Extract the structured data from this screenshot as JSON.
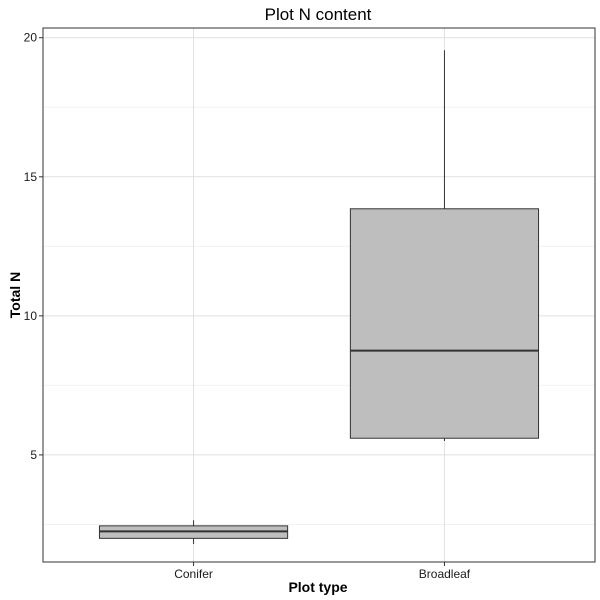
{
  "chart_data": {
    "type": "boxplot",
    "title": "Plot N content",
    "xlabel": "Plot type",
    "ylabel": "Total N",
    "categories": [
      "Conifer",
      "Broadleaf"
    ],
    "boxes": [
      {
        "category": "Conifer",
        "min": 1.8,
        "q1": 2.0,
        "median": 2.25,
        "q3": 2.45,
        "max": 2.65
      },
      {
        "category": "Broadleaf",
        "min": 5.5,
        "q1": 5.6,
        "median": 8.75,
        "q3": 13.85,
        "max": 19.55
      }
    ],
    "ylim": [
      1.15,
      20.35
    ],
    "yticks": [
      5,
      10,
      15,
      20
    ],
    "ytick_labels": [
      "5",
      "10",
      "15",
      "20"
    ],
    "grid": true,
    "legend": "none",
    "colors": {
      "box_fill": "#bebebe",
      "box_stroke": "#333333",
      "grid_major": "#e0e0e0",
      "grid_minor": "#f2f2f2",
      "panel_border": "#333333"
    }
  }
}
